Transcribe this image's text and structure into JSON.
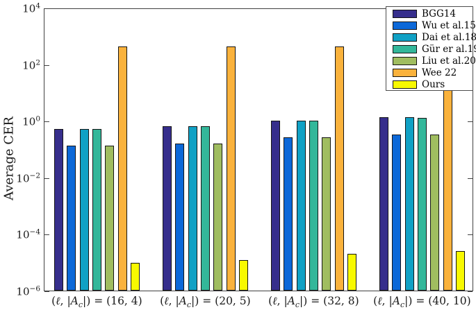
{
  "chart_data": {
    "type": "bar",
    "title": "",
    "ylabel": "Average CER",
    "xlabel": "",
    "yscale": "log",
    "ylim": [
      1e-06,
      10000.0
    ],
    "ytick_exponents": [
      4,
      2,
      0,
      -2,
      -4,
      -6
    ],
    "grid": false,
    "legend_position": "top-right",
    "categories": [
      "(ℓ, |A_c|) = (16, 4)",
      "(ℓ, |A_c|) = (20, 5)",
      "(ℓ, |A_c|) = (32, 8)",
      "(ℓ, |A_c|) = (40, 10)"
    ],
    "series": [
      {
        "name": "BGG14",
        "color": "#362E8C",
        "values": [
          0.55,
          0.68,
          1.1,
          1.4
        ]
      },
      {
        "name": "Wu et al.15",
        "color": "#0C68D8",
        "values": [
          0.14,
          0.17,
          0.27,
          0.35
        ]
      },
      {
        "name": "Dai et al.18",
        "color": "#10A1C5",
        "values": [
          0.55,
          0.68,
          1.1,
          1.4
        ]
      },
      {
        "name": "Gür er al.19",
        "color": "#33B79A",
        "values": [
          0.55,
          0.68,
          1.1,
          1.35
        ]
      },
      {
        "name": "Liu et al.20",
        "color": "#A0BD60",
        "values": [
          0.14,
          0.17,
          0.27,
          0.35
        ]
      },
      {
        "name": "Wee 22",
        "color": "#FAB23C",
        "values": [
          450,
          450,
          450,
          450
        ]
      },
      {
        "name": "Ours",
        "color": "#F8F900",
        "values": [
          1e-05,
          1.3e-05,
          2.1e-05,
          2.6e-05
        ]
      }
    ]
  }
}
